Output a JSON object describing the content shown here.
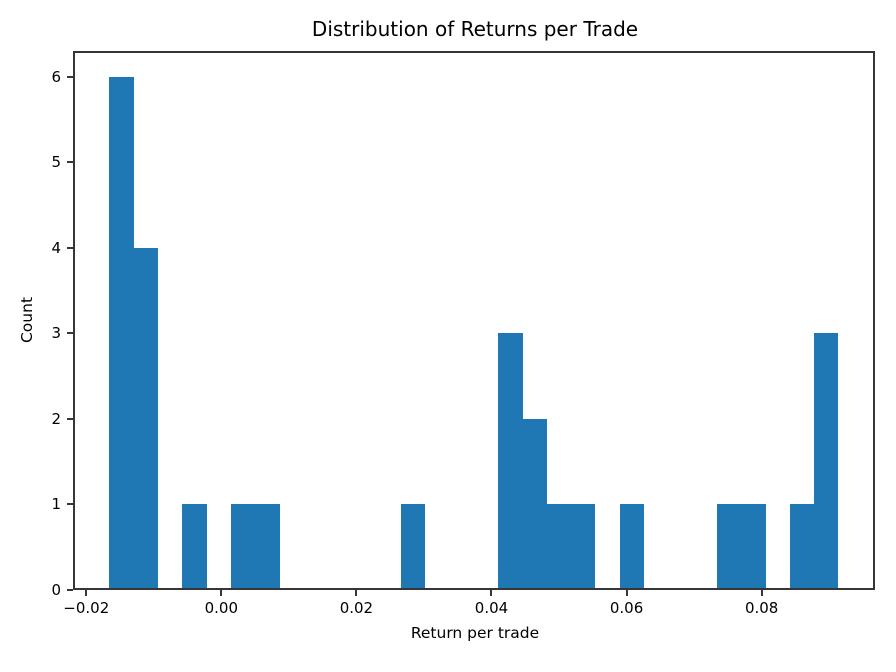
{
  "chart_data": {
    "type": "bar",
    "subtype": "histogram",
    "title": "Distribution of Returns per Trade",
    "xlabel": "Return per trade",
    "ylabel": "Count",
    "bar_color": "#1f77b4",
    "n_bins": 30,
    "bin_start": -0.01656,
    "bin_width": 0.0035975,
    "counts": [
      6,
      4,
      0,
      1,
      0,
      1,
      1,
      0,
      0,
      0,
      0,
      0,
      1,
      0,
      0,
      0,
      3,
      2,
      1,
      1,
      0,
      1,
      0,
      0,
      0,
      1,
      1,
      0,
      1,
      3
    ],
    "xlim": [
      -0.02196,
      0.09678
    ],
    "ylim": [
      0,
      6.3
    ],
    "xticks": [
      -0.02,
      0.0,
      0.02,
      0.04,
      0.06,
      0.08
    ],
    "xtick_labels": [
      "−0.02",
      "0.00",
      "0.02",
      "0.04",
      "0.06",
      "0.08"
    ],
    "yticks": [
      0,
      1,
      2,
      3,
      4,
      5,
      6
    ],
    "ytick_labels": [
      "0",
      "1",
      "2",
      "3",
      "4",
      "5",
      "6"
    ],
    "grid": false,
    "legend": null
  }
}
